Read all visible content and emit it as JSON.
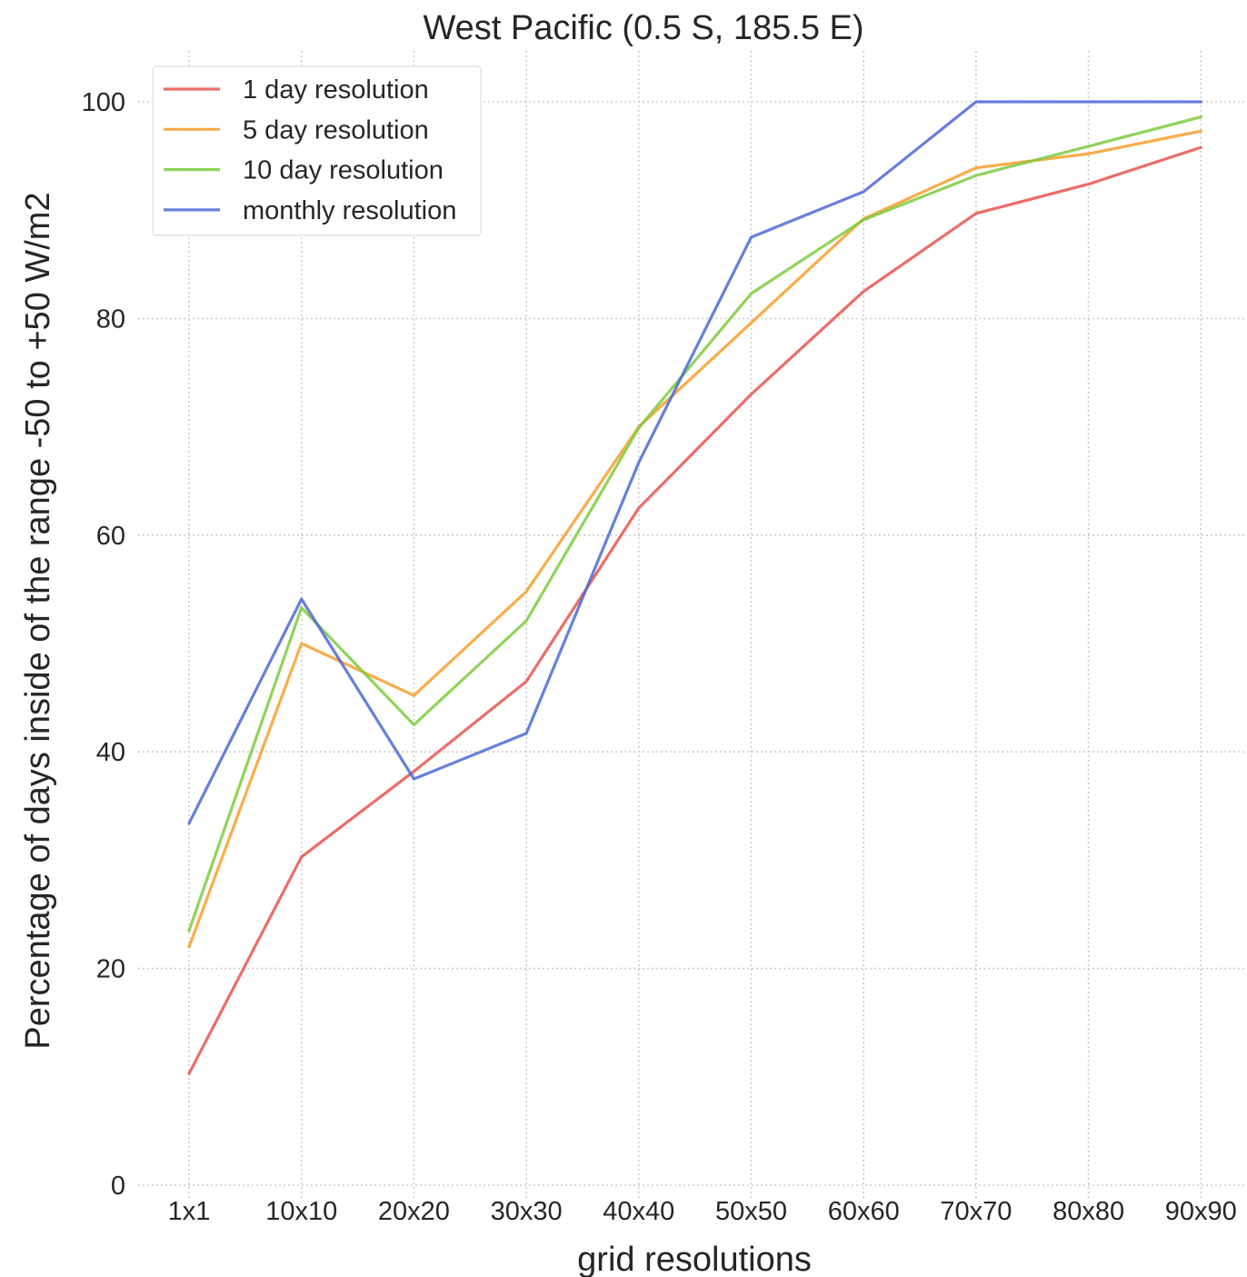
{
  "chart_data": {
    "type": "line",
    "title": "West Pacific (0.5 S, 185.5 E)",
    "xlabel": "grid resolutions",
    "ylabel": "Percentage of days inside of the range -50 to +50 W/m2",
    "categories": [
      "1x1",
      "10x10",
      "20x20",
      "30x30",
      "40x40",
      "50x50",
      "60x60",
      "70x70",
      "80x80",
      "90x90"
    ],
    "ylim": [
      0,
      104
    ],
    "yticks": [
      0,
      20,
      40,
      60,
      80,
      100
    ],
    "grid": true,
    "legend_position": "top-left",
    "series": [
      {
        "name": "1 day resolution",
        "color": "#e8534f",
        "values": [
          10.3,
          30.3,
          38.2,
          46.5,
          62.5,
          73.0,
          82.5,
          89.7,
          92.4,
          95.8
        ]
      },
      {
        "name": "5 day resolution",
        "color": "#f99d2a",
        "values": [
          22.0,
          50.0,
          45.2,
          54.8,
          70.0,
          79.6,
          89.2,
          93.9,
          95.2,
          97.3
        ]
      },
      {
        "name": "10 day resolution",
        "color": "#7ccb3e",
        "values": [
          23.5,
          53.3,
          42.5,
          52.1,
          69.9,
          82.3,
          89.1,
          93.2,
          95.9,
          98.6
        ]
      },
      {
        "name": "monthly resolution",
        "color": "#4c6ad6",
        "values": [
          33.4,
          54.1,
          37.5,
          41.7,
          66.7,
          87.5,
          91.7,
          100.0,
          100.0,
          100.0
        ]
      }
    ]
  }
}
